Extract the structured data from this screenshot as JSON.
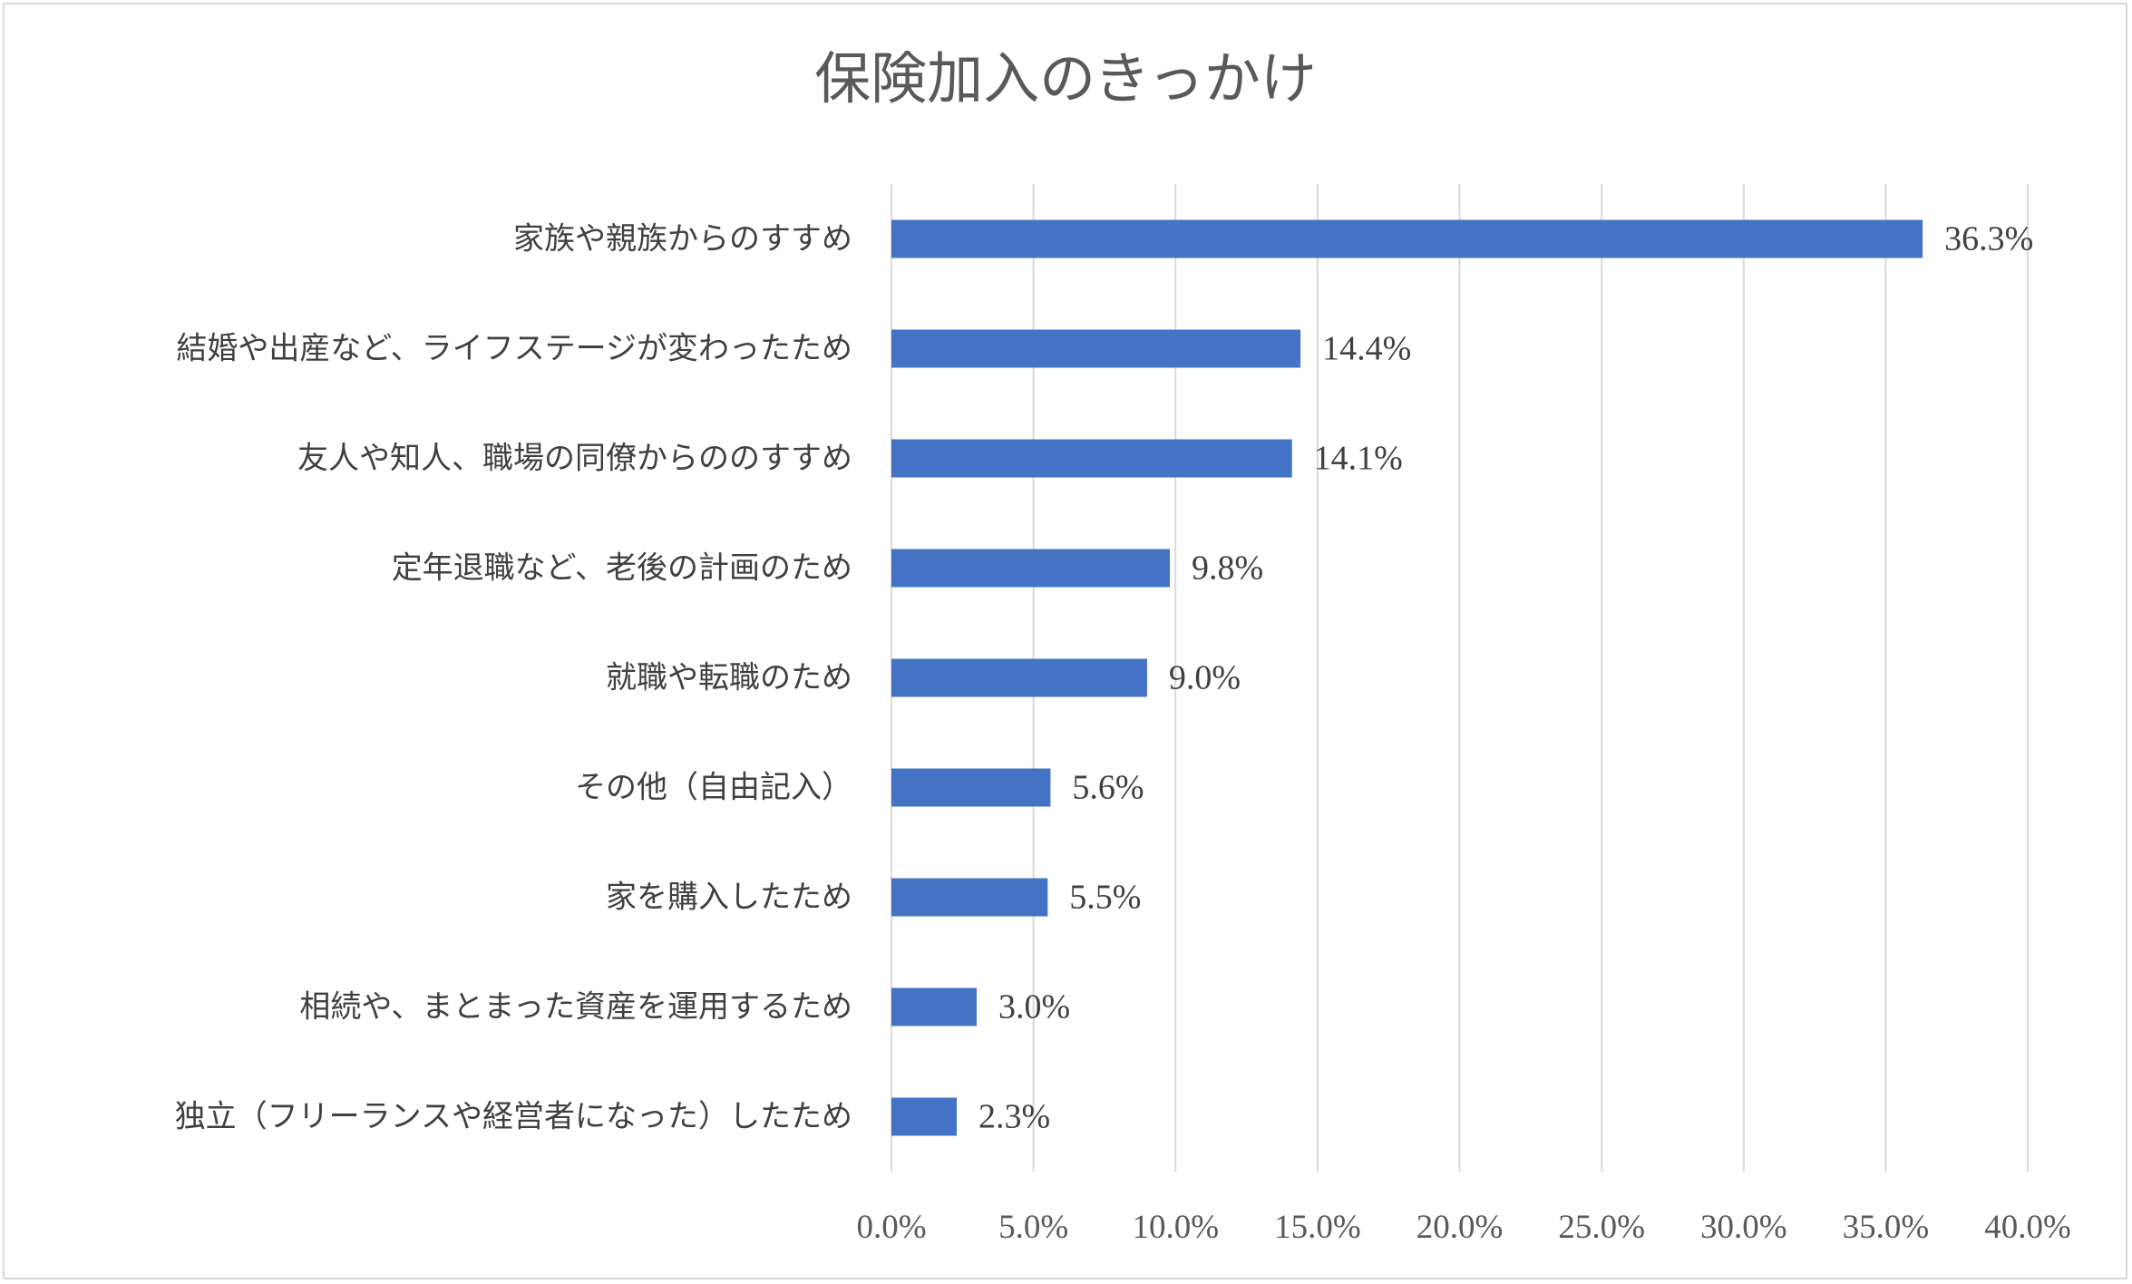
{
  "chart_data": {
    "type": "bar",
    "orientation": "horizontal",
    "title": "保険加入のきっかけ",
    "categories": [
      "家族や親族からのすすめ",
      "結婚や出産など、ライフステージが変わったため",
      "友人や知人、職場の同僚からののすすめ",
      "定年退職など、老後の計画のため",
      "就職や転職のため",
      "その他（自由記入）",
      "家を購入したため",
      "相続や、まとまった資産を運用するため",
      "独立（フリーランスや経営者になった）したため"
    ],
    "values": [
      36.3,
      14.4,
      14.1,
      9.8,
      9.0,
      5.6,
      5.5,
      3.0,
      2.3
    ],
    "data_labels": [
      "36.3%",
      "14.4%",
      "14.1%",
      "9.8%",
      "9.0%",
      "5.6%",
      "5.5%",
      "3.0%",
      "2.3%"
    ],
    "xlim": [
      0,
      40
    ],
    "x_ticks": [
      "0.0%",
      "5.0%",
      "10.0%",
      "15.0%",
      "20.0%",
      "25.0%",
      "30.0%",
      "35.0%",
      "40.0%"
    ],
    "grid": "vertical",
    "legend": "none",
    "bar_color": "#4472c4",
    "grid_color": "#d9d9d9"
  }
}
